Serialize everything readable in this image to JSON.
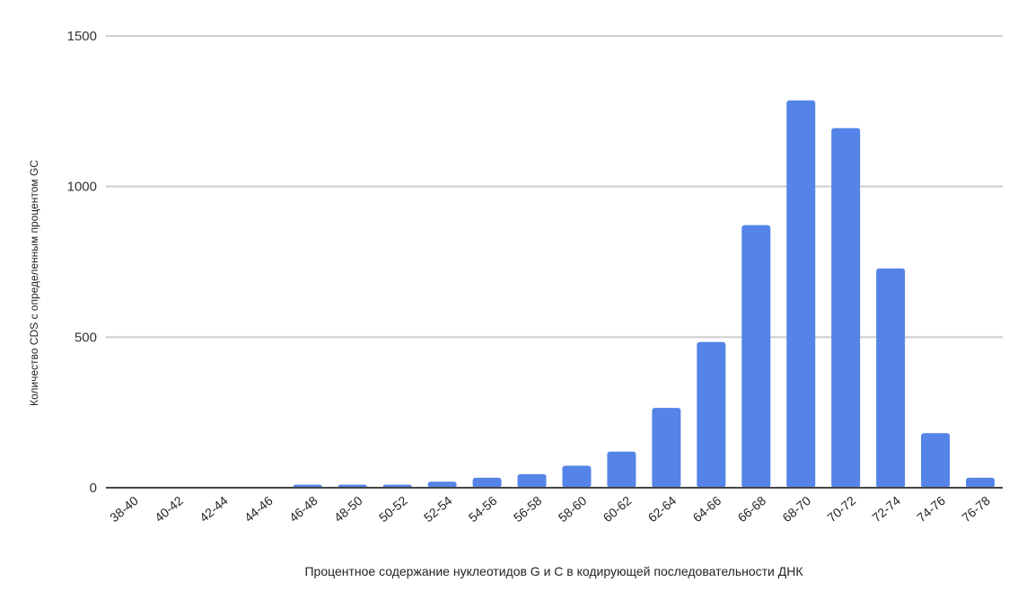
{
  "chart_data": {
    "type": "bar",
    "title": "",
    "xlabel": "Процентное содержание нуклеотидов G и С в кодирующей последовательности ДНК",
    "ylabel": "Количество CDS с определенным процентом GC",
    "ylim": [
      0,
      1500
    ],
    "yticks": [
      0,
      500,
      1000,
      1500
    ],
    "grid": true,
    "legend": "none",
    "bar_color": "#5484E8",
    "categories": [
      "38-40",
      "40-42",
      "42-44",
      "44-46",
      "46-48",
      "48-50",
      "50-52",
      "52-54",
      "54-56",
      "56-58",
      "58-60",
      "60-62",
      "62-64",
      "64-66",
      "66-68",
      "68-70",
      "70-72",
      "72-74",
      "74-76",
      "76-78"
    ],
    "values": [
      2,
      2,
      2,
      3,
      10,
      10,
      10,
      20,
      33,
      45,
      73,
      120,
      265,
      484,
      872,
      1286,
      1194,
      728,
      181,
      33
    ]
  }
}
